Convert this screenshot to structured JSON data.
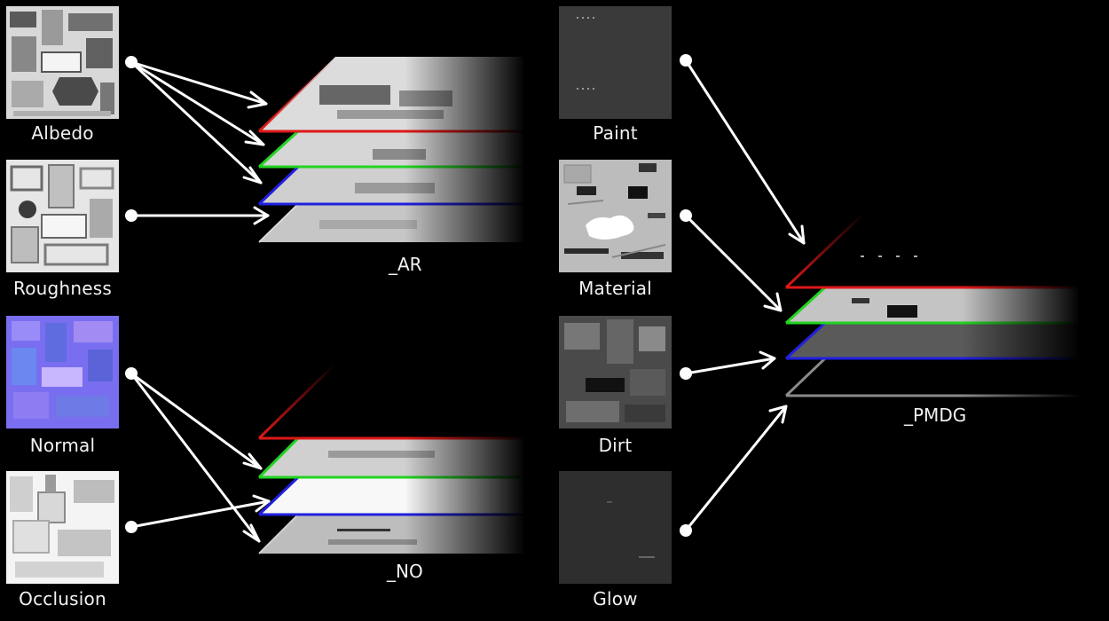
{
  "inputs": {
    "albedo": "Albedo",
    "roughness": "Roughness",
    "normal": "Normal",
    "occlusion": "Occlusion",
    "paint": "Paint",
    "material": "Material",
    "dirt": "Dirt",
    "glow": "Glow"
  },
  "outputs": {
    "ar": "_AR",
    "no": "_NO",
    "pmdg": "_PMDG"
  },
  "colors": {
    "background": "#000000",
    "red": "#e01818",
    "green": "#22d422",
    "blue": "#2020e0",
    "gray": "#8a8a8a",
    "arrow": "#ffffff",
    "normal_map": "#7a6ef0"
  }
}
